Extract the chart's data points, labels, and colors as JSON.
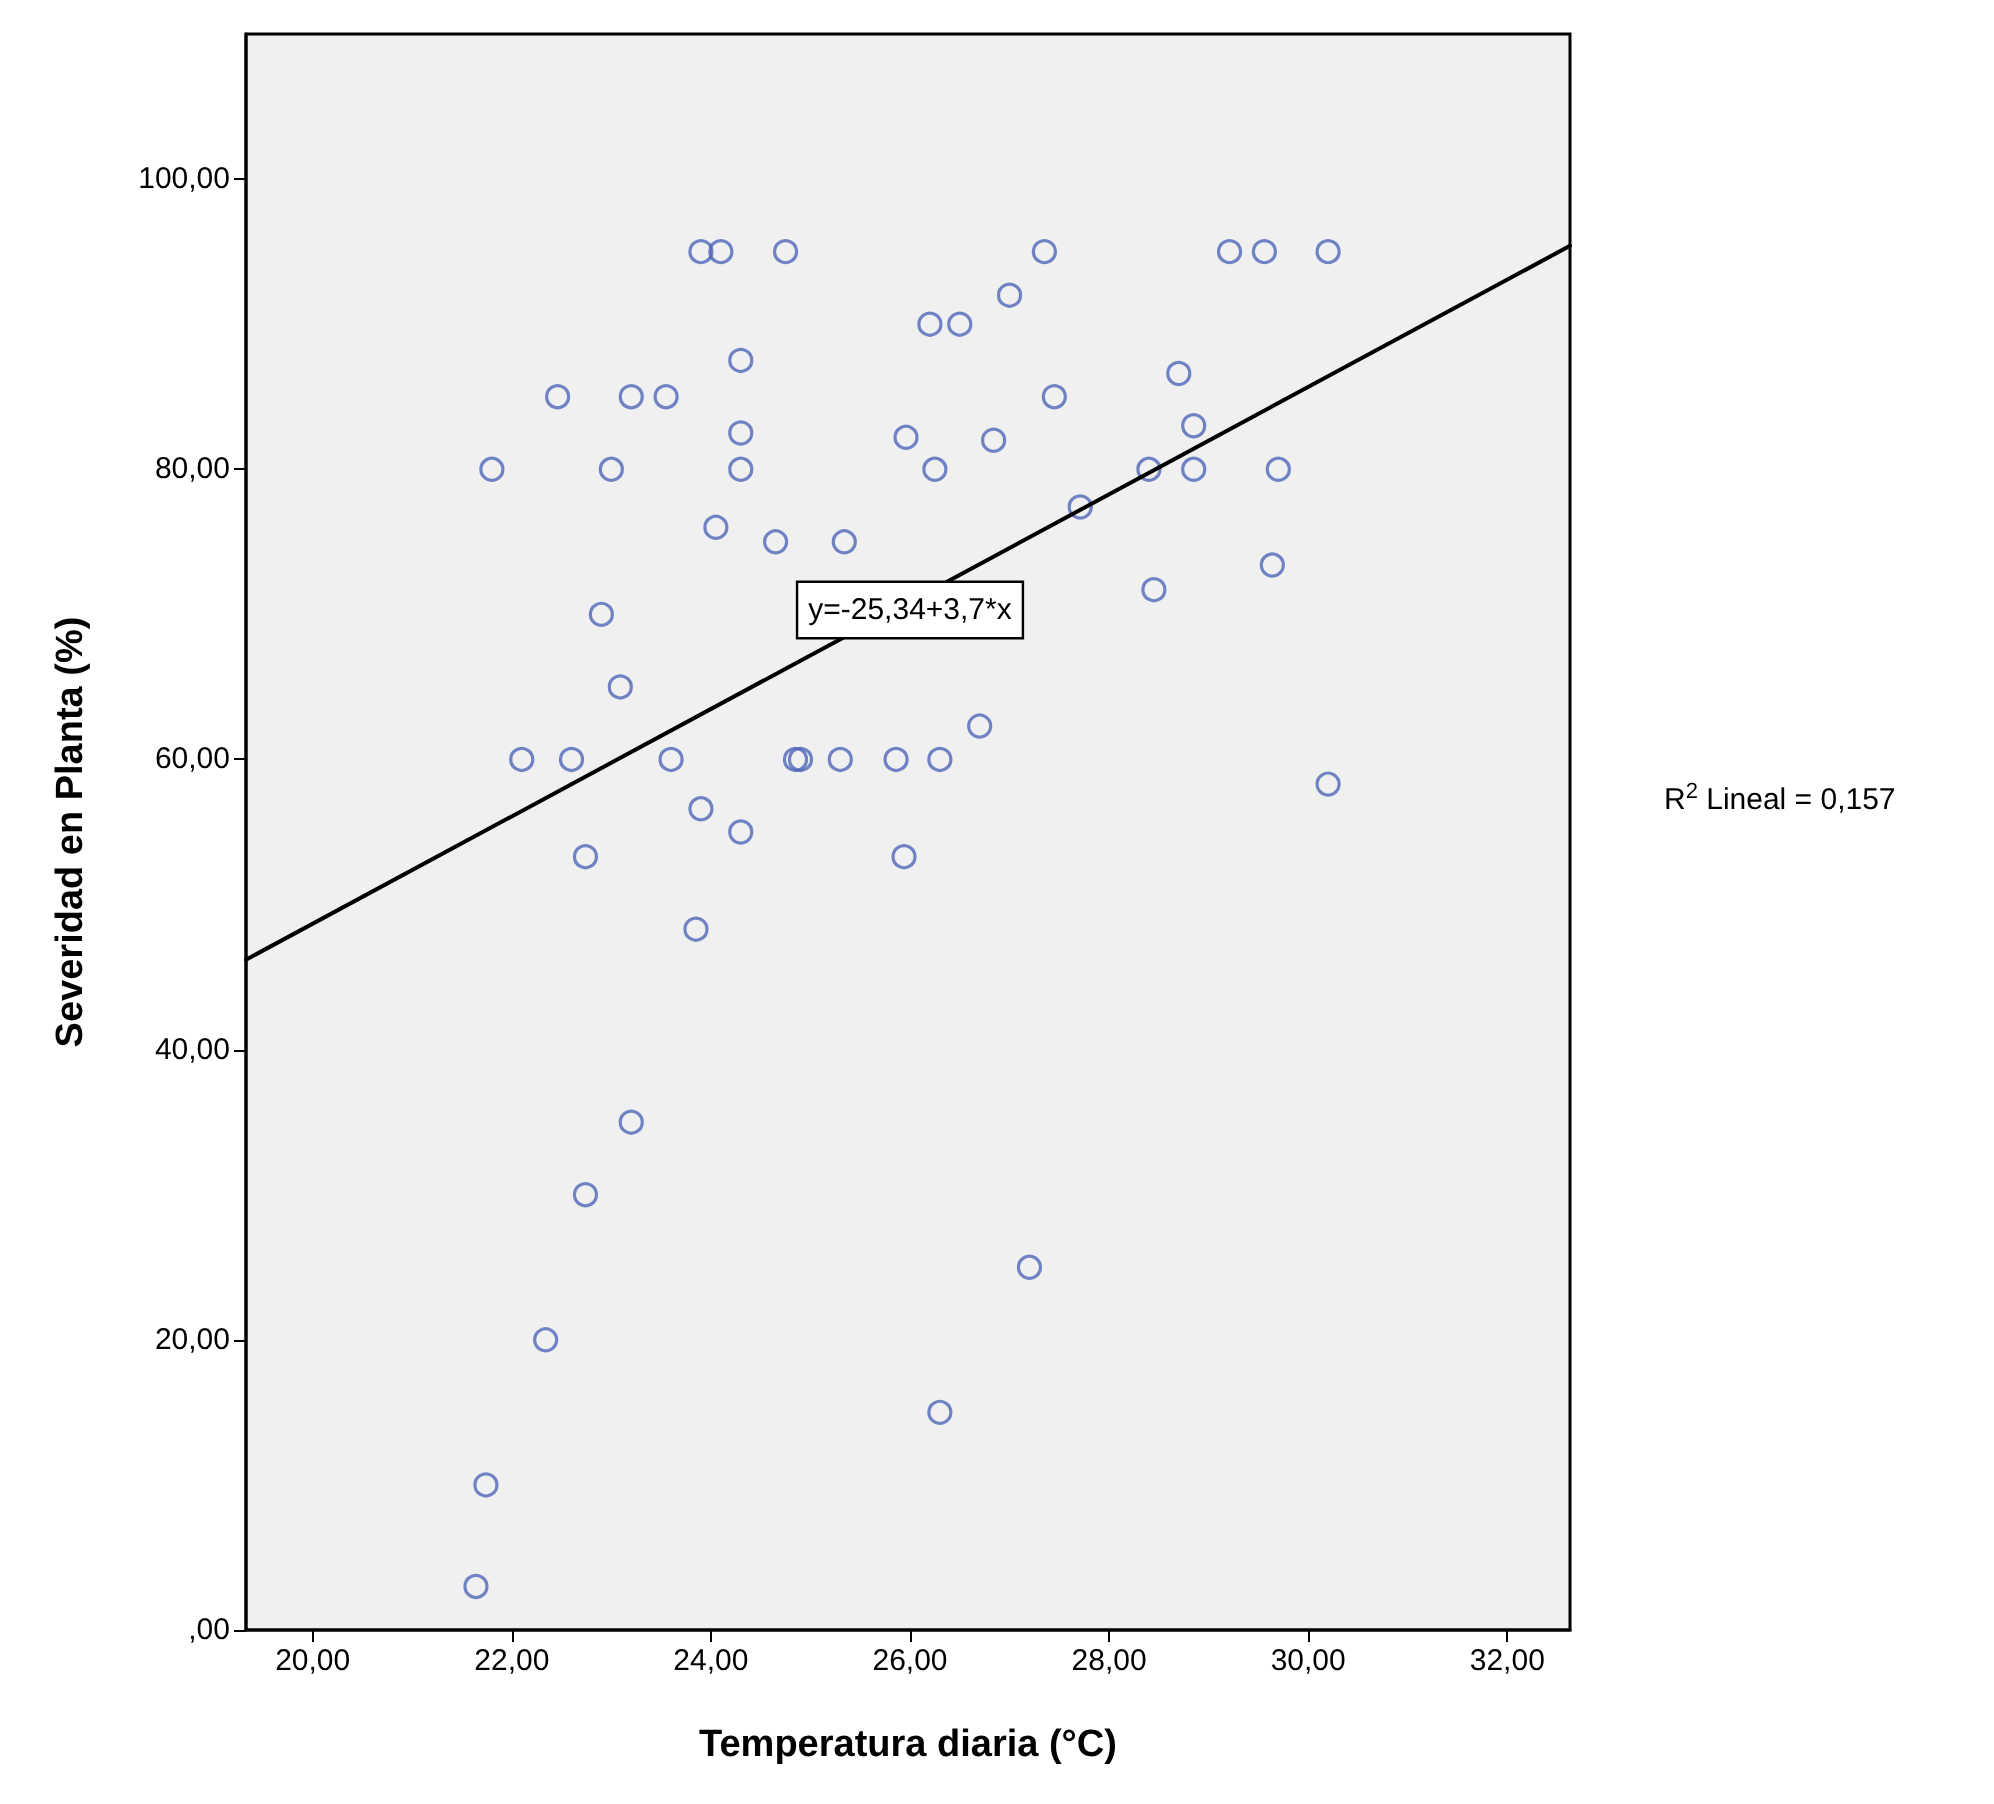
{
  "chart_data": {
    "type": "scatter",
    "xlabel": "Temperatura diaria (°C)",
    "ylabel": "Severidad en Planta (%)",
    "xlim": [
      19.33,
      32.63
    ],
    "ylim": [
      0,
      110
    ],
    "xticks": [
      {
        "value": 20,
        "label": "20,00"
      },
      {
        "value": 22,
        "label": "22,00"
      },
      {
        "value": 24,
        "label": "24,00"
      },
      {
        "value": 26,
        "label": "26,00"
      },
      {
        "value": 28,
        "label": "28,00"
      },
      {
        "value": 30,
        "label": "30,00"
      },
      {
        "value": 32,
        "label": "32,00"
      }
    ],
    "yticks": [
      {
        "value": 0,
        "label": ",00"
      },
      {
        "value": 20,
        "label": "20,00"
      },
      {
        "value": 40,
        "label": "40,00"
      },
      {
        "value": 60,
        "label": "60,00"
      },
      {
        "value": 80,
        "label": "80,00"
      },
      {
        "value": 100,
        "label": "100,00"
      }
    ],
    "grid": false,
    "marker": "circle",
    "series": [
      {
        "color": "#4f66b8",
        "x": [
          21.64,
          21.74,
          22.34,
          22.74,
          23.2,
          26.3,
          27.2,
          23.85,
          23.9,
          24.3,
          22.74,
          22.1,
          22.6,
          23.6,
          24.85,
          24.9,
          25.3,
          25.86,
          26.3,
          25.94,
          26.7,
          23.09,
          22.9,
          24.05,
          24.65,
          25.34,
          21.8,
          23.0,
          24.3,
          26.25,
          22.46,
          23.2,
          23.55,
          24.3,
          24.3,
          23.9,
          24.1,
          24.75,
          25.96,
          26.2,
          26.5,
          27.0,
          27.35,
          26.84,
          27.45,
          27.71,
          28.4,
          28.45,
          28.7,
          28.85,
          28.85,
          29.21,
          29.56,
          30.2,
          29.7,
          29.64,
          30.2
        ],
        "values": [
          3,
          10,
          20,
          30,
          35,
          15,
          25,
          48.3,
          56.6,
          55,
          53.3,
          60,
          60,
          60,
          60,
          60,
          60,
          60,
          60,
          53.3,
          62.3,
          65,
          70,
          76,
          75,
          75,
          80,
          80,
          80,
          80,
          85,
          85,
          85,
          82.5,
          87.5,
          95,
          95,
          95,
          82.2,
          90,
          90,
          92,
          95,
          82,
          85,
          77.4,
          80,
          71.7,
          86.6,
          83,
          80,
          95,
          95,
          95,
          80,
          73.4,
          58.3
        ]
      },
      {
        "type": "line",
        "color": "#000000",
        "marker": "none",
        "line_style": "solid",
        "x": [
          19.33,
          32.63
        ],
        "values": [
          46.2,
          95.4
        ]
      }
    ],
    "annotations": [
      {
        "text": "y=-25,34+3,7*x",
        "x": 26.0,
        "y": 70.3
      },
      "R$^{2}$ Lineal = 0,157"
    ]
  }
}
